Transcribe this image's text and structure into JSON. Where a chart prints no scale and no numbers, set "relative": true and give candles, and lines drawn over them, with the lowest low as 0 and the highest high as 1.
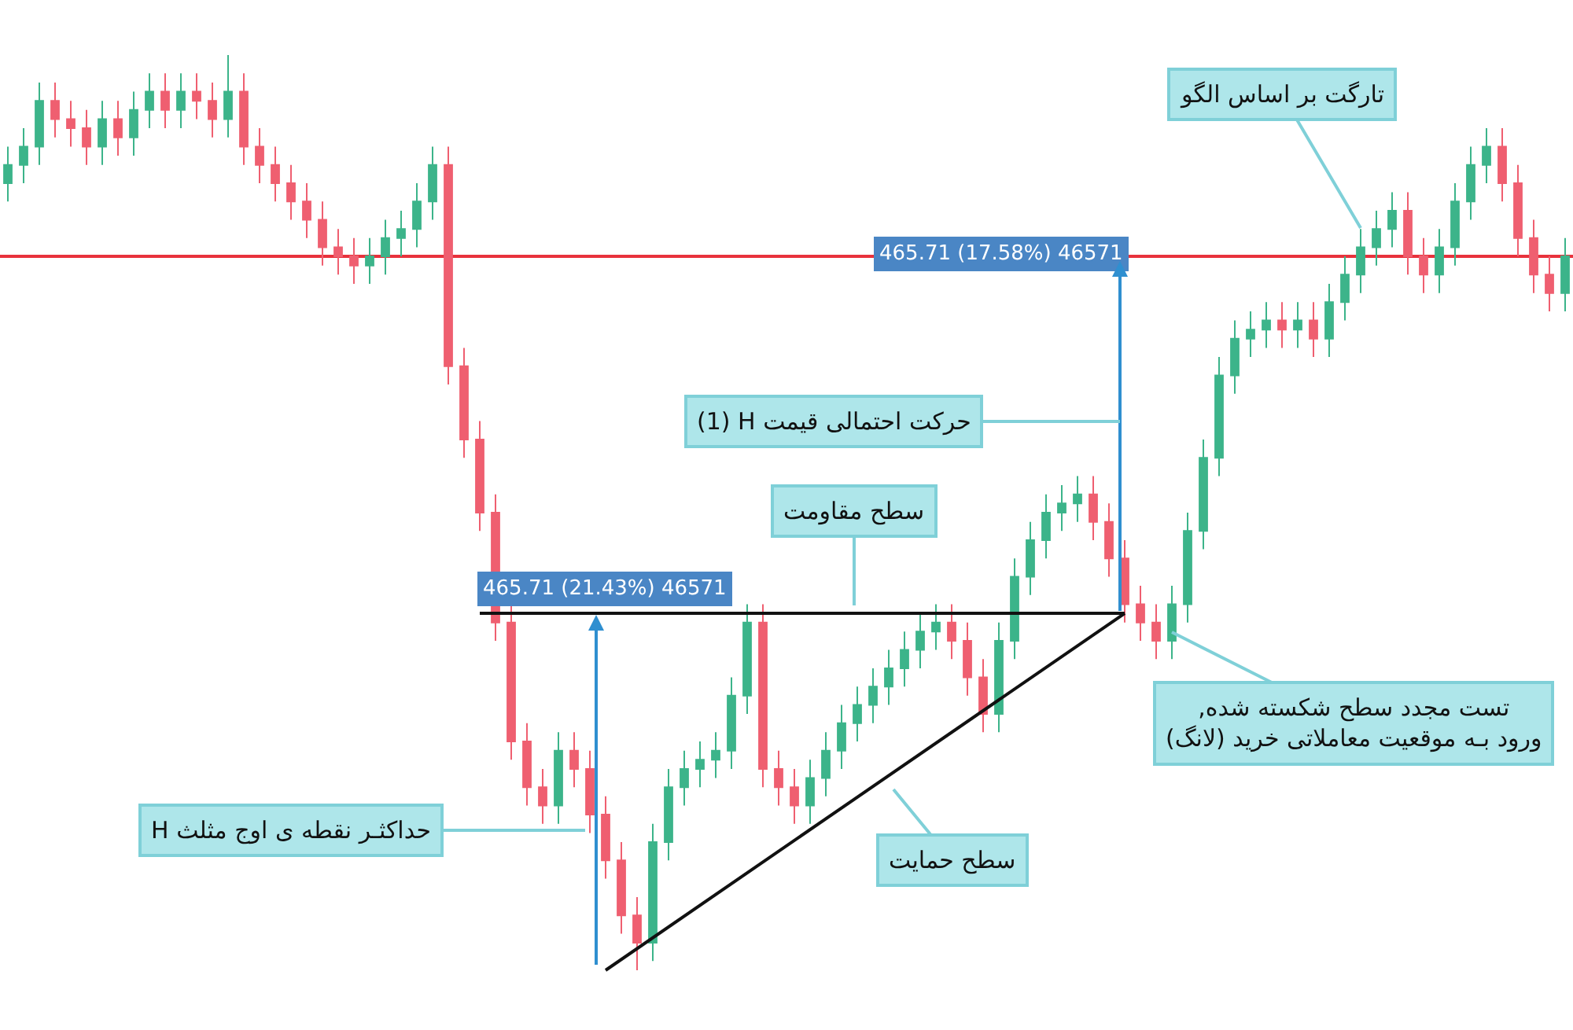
{
  "chart_data": {
    "type": "candlestick",
    "relative": true,
    "categories": [
      null,
      null,
      null,
      null,
      null,
      null,
      null,
      null,
      null,
      null,
      null,
      null,
      null,
      null,
      null,
      null,
      null,
      null,
      null,
      null,
      null,
      null,
      null,
      null,
      null,
      null,
      null,
      null,
      null,
      null,
      null,
      null,
      null,
      null,
      null,
      null,
      null,
      null,
      null,
      null,
      null,
      null,
      null,
      null,
      null,
      null,
      null,
      null,
      null,
      null,
      null,
      null,
      null,
      null,
      null,
      null,
      null,
      null,
      null,
      null,
      null,
      null,
      null,
      null,
      null,
      null,
      null,
      null,
      null,
      null,
      null,
      null,
      null,
      null,
      null,
      null,
      null,
      null,
      null,
      null,
      null,
      null,
      null,
      null,
      null,
      null,
      null,
      null,
      null,
      null,
      null,
      null,
      null,
      null,
      null,
      null,
      null,
      null,
      null,
      null
    ],
    "ohlc": [
      [
        0.86,
        0.9,
        0.84,
        0.88
      ],
      [
        0.88,
        0.92,
        0.86,
        0.9
      ],
      [
        0.9,
        0.97,
        0.88,
        0.95
      ],
      [
        0.95,
        0.97,
        0.91,
        0.93
      ],
      [
        0.93,
        0.95,
        0.9,
        0.92
      ],
      [
        0.92,
        0.94,
        0.88,
        0.9
      ],
      [
        0.9,
        0.95,
        0.88,
        0.93
      ],
      [
        0.93,
        0.95,
        0.89,
        0.91
      ],
      [
        0.91,
        0.96,
        0.89,
        0.94
      ],
      [
        0.94,
        0.98,
        0.92,
        0.96
      ],
      [
        0.96,
        0.98,
        0.92,
        0.94
      ],
      [
        0.94,
        0.98,
        0.92,
        0.96
      ],
      [
        0.96,
        0.98,
        0.93,
        0.95
      ],
      [
        0.95,
        0.97,
        0.91,
        0.93
      ],
      [
        0.93,
        1.0,
        0.91,
        0.96
      ],
      [
        0.96,
        0.98,
        0.88,
        0.9
      ],
      [
        0.9,
        0.92,
        0.86,
        0.88
      ],
      [
        0.88,
        0.9,
        0.84,
        0.86
      ],
      [
        0.86,
        0.88,
        0.82,
        0.84
      ],
      [
        0.84,
        0.86,
        0.8,
        0.82
      ],
      [
        0.82,
        0.84,
        0.77,
        0.79
      ],
      [
        0.79,
        0.81,
        0.76,
        0.78
      ],
      [
        0.78,
        0.8,
        0.75,
        0.77
      ],
      [
        0.77,
        0.8,
        0.75,
        0.78
      ],
      [
        0.78,
        0.82,
        0.76,
        0.8
      ],
      [
        0.8,
        0.83,
        0.78,
        0.81
      ],
      [
        0.81,
        0.86,
        0.79,
        0.84
      ],
      [
        0.84,
        0.9,
        0.82,
        0.88
      ],
      [
        0.88,
        0.9,
        0.64,
        0.66
      ],
      [
        0.66,
        0.68,
        0.56,
        0.58
      ],
      [
        0.58,
        0.6,
        0.48,
        0.5
      ],
      [
        0.5,
        0.52,
        0.36,
        0.38
      ],
      [
        0.38,
        0.4,
        0.23,
        0.25
      ],
      [
        0.25,
        0.27,
        0.18,
        0.2
      ],
      [
        0.2,
        0.22,
        0.16,
        0.18
      ],
      [
        0.18,
        0.26,
        0.16,
        0.24
      ],
      [
        0.24,
        0.26,
        0.2,
        0.22
      ],
      [
        0.22,
        0.24,
        0.15,
        0.17
      ],
      [
        0.17,
        0.19,
        0.1,
        0.12
      ],
      [
        0.12,
        0.14,
        0.04,
        0.06
      ],
      [
        0.06,
        0.08,
        0.0,
        0.03
      ],
      [
        0.03,
        0.16,
        0.01,
        0.14
      ],
      [
        0.14,
        0.22,
        0.12,
        0.2
      ],
      [
        0.2,
        0.24,
        0.18,
        0.22
      ],
      [
        0.22,
        0.25,
        0.2,
        0.23
      ],
      [
        0.23,
        0.26,
        0.21,
        0.24
      ],
      [
        0.24,
        0.32,
        0.22,
        0.3
      ],
      [
        0.3,
        0.4,
        0.28,
        0.38
      ],
      [
        0.38,
        0.4,
        0.2,
        0.22
      ],
      [
        0.22,
        0.24,
        0.18,
        0.2
      ],
      [
        0.2,
        0.22,
        0.16,
        0.18
      ],
      [
        0.18,
        0.23,
        0.16,
        0.21
      ],
      [
        0.21,
        0.26,
        0.19,
        0.24
      ],
      [
        0.24,
        0.29,
        0.22,
        0.27
      ],
      [
        0.27,
        0.31,
        0.25,
        0.29
      ],
      [
        0.29,
        0.33,
        0.27,
        0.31
      ],
      [
        0.31,
        0.35,
        0.29,
        0.33
      ],
      [
        0.33,
        0.37,
        0.31,
        0.35
      ],
      [
        0.35,
        0.39,
        0.33,
        0.37
      ],
      [
        0.37,
        0.4,
        0.35,
        0.38
      ],
      [
        0.38,
        0.4,
        0.34,
        0.36
      ],
      [
        0.36,
        0.38,
        0.3,
        0.32
      ],
      [
        0.32,
        0.34,
        0.26,
        0.28
      ],
      [
        0.28,
        0.38,
        0.26,
        0.36
      ],
      [
        0.36,
        0.45,
        0.34,
        0.43
      ],
      [
        0.43,
        0.49,
        0.41,
        0.47
      ],
      [
        0.47,
        0.52,
        0.45,
        0.5
      ],
      [
        0.5,
        0.53,
        0.48,
        0.51
      ],
      [
        0.51,
        0.54,
        0.49,
        0.52
      ],
      [
        0.52,
        0.54,
        0.47,
        0.49
      ],
      [
        0.49,
        0.51,
        0.43,
        0.45
      ],
      [
        0.45,
        0.47,
        0.38,
        0.4
      ],
      [
        0.4,
        0.42,
        0.36,
        0.38
      ],
      [
        0.38,
        0.4,
        0.34,
        0.36
      ],
      [
        0.36,
        0.42,
        0.34,
        0.4
      ],
      [
        0.4,
        0.5,
        0.38,
        0.48
      ],
      [
        0.48,
        0.58,
        0.46,
        0.56
      ],
      [
        0.56,
        0.67,
        0.54,
        0.65
      ],
      [
        0.65,
        0.71,
        0.63,
        0.69
      ],
      [
        0.69,
        0.72,
        0.67,
        0.7
      ],
      [
        0.7,
        0.73,
        0.68,
        0.71
      ],
      [
        0.71,
        0.73,
        0.68,
        0.7
      ],
      [
        0.7,
        0.73,
        0.68,
        0.71
      ],
      [
        0.71,
        0.73,
        0.67,
        0.69
      ],
      [
        0.69,
        0.75,
        0.67,
        0.73
      ],
      [
        0.73,
        0.78,
        0.71,
        0.76
      ],
      [
        0.76,
        0.81,
        0.74,
        0.79
      ],
      [
        0.79,
        0.83,
        0.77,
        0.81
      ],
      [
        0.81,
        0.85,
        0.79,
        0.83
      ],
      [
        0.83,
        0.85,
        0.76,
        0.78
      ],
      [
        0.78,
        0.8,
        0.74,
        0.76
      ],
      [
        0.76,
        0.81,
        0.74,
        0.79
      ],
      [
        0.79,
        0.86,
        0.77,
        0.84
      ],
      [
        0.84,
        0.9,
        0.82,
        0.88
      ],
      [
        0.88,
        0.92,
        0.86,
        0.9
      ],
      [
        0.9,
        0.92,
        0.84,
        0.86
      ],
      [
        0.86,
        0.88,
        0.78,
        0.8
      ],
      [
        0.8,
        0.82,
        0.74,
        0.76
      ],
      [
        0.76,
        0.78,
        0.72,
        0.74
      ],
      [
        0.74,
        0.8,
        0.72,
        0.78
      ]
    ],
    "colors": [
      "#3cb48a",
      "#3cb48a",
      "#3cb48a",
      "#ef5f70",
      "#ef5f70",
      "#ef5f70",
      "#3cb48a",
      "#ef5f70",
      "#3cb48a",
      "#3cb48a",
      "#ef5f70",
      "#3cb48a",
      "#ef5f70",
      "#ef5f70",
      "#3cb48a",
      "#ef5f70",
      "#ef5f70",
      "#ef5f70",
      "#ef5f70",
      "#ef5f70",
      "#ef5f70",
      "#ef5f70",
      "#ef5f70",
      "#3cb48a",
      "#3cb48a",
      "#3cb48a",
      "#3cb48a",
      "#3cb48a",
      "#ef5f70",
      "#ef5f70",
      "#ef5f70",
      "#ef5f70",
      "#ef5f70",
      "#ef5f70",
      "#ef5f70",
      "#3cb48a",
      "#ef5f70",
      "#ef5f70",
      "#ef5f70",
      "#ef5f70",
      "#ef5f70",
      "#3cb48a",
      "#3cb48a",
      "#3cb48a",
      "#3cb48a",
      "#3cb48a",
      "#3cb48a",
      "#3cb48a",
      "#ef5f70",
      "#ef5f70",
      "#ef5f70",
      "#3cb48a",
      "#3cb48a",
      "#3cb48a",
      "#3cb48a",
      "#3cb48a",
      "#3cb48a",
      "#3cb48a",
      "#3cb48a",
      "#3cb48a",
      "#ef5f70",
      "#ef5f70",
      "#ef5f70",
      "#3cb48a",
      "#3cb48a",
      "#3cb48a",
      "#3cb48a",
      "#3cb48a",
      "#3cb48a",
      "#ef5f70",
      "#ef5f70",
      "#ef5f70",
      "#ef5f70",
      "#ef5f70",
      "#3cb48a",
      "#3cb48a",
      "#3cb48a",
      "#3cb48a",
      "#3cb48a",
      "#3cb48a",
      "#3cb48a",
      "#ef5f70",
      "#3cb48a",
      "#ef5f70",
      "#3cb48a",
      "#3cb48a",
      "#3cb48a",
      "#3cb48a",
      "#3cb48a",
      "#ef5f70",
      "#ef5f70",
      "#3cb48a",
      "#3cb48a",
      "#3cb48a",
      "#3cb48a",
      "#ef5f70",
      "#ef5f70",
      "#ef5f70",
      "#ef5f70",
      "#3cb48a"
    ],
    "series": [
      {
        "type": "line",
        "color": "#111111",
        "values": [
          null,
          null,
          null,
          null,
          null,
          null,
          null,
          null,
          null,
          null,
          null,
          null,
          null,
          null,
          null,
          null,
          null,
          null,
          null,
          null,
          null,
          null,
          null,
          null,
          null,
          null,
          null,
          null,
          null,
          null,
          0.39,
          null,
          null,
          null,
          null,
          null,
          null,
          null,
          null,
          null,
          null,
          null,
          null,
          null,
          null,
          null,
          null,
          null,
          null,
          null,
          null,
          null,
          null,
          null,
          null,
          null,
          null,
          null,
          null,
          null,
          null,
          null,
          null,
          null,
          null,
          null,
          null,
          null,
          null,
          null,
          null,
          0.39,
          null,
          null,
          null,
          null,
          null,
          null,
          null,
          null,
          null,
          null,
          null,
          null,
          null,
          null,
          null,
          null,
          null,
          null,
          null,
          null,
          null,
          null,
          null,
          null,
          null,
          null,
          null,
          null
        ]
      },
      {
        "type": "line",
        "color": "#111111",
        "values": [
          null,
          null,
          null,
          null,
          null,
          null,
          null,
          null,
          null,
          null,
          null,
          null,
          null,
          null,
          null,
          null,
          null,
          null,
          null,
          null,
          null,
          null,
          null,
          null,
          null,
          null,
          null,
          null,
          null,
          null,
          null,
          null,
          null,
          null,
          null,
          null,
          null,
          null,
          0.0,
          null,
          null,
          null,
          null,
          null,
          null,
          null,
          null,
          null,
          null,
          null,
          null,
          null,
          null,
          null,
          null,
          null,
          null,
          null,
          null,
          null,
          null,
          null,
          null,
          null,
          null,
          null,
          null,
          null,
          null,
          null,
          null,
          0.39,
          null,
          null,
          null,
          null,
          null,
          null,
          null,
          null,
          null,
          null,
          null,
          null,
          null,
          null,
          null,
          null,
          null,
          null,
          null,
          null,
          null,
          null,
          null,
          null,
          null,
          null,
          null,
          null
        ]
      }
    ],
    "ref_lines": [
      {
        "axis": "y",
        "value": 0.78,
        "color": "#e8323c"
      }
    ],
    "annotations": [
      "تارگت بر اساس الگو",
      "465.71 (17.58%) 46571",
      "(1) H حرکت احتمالی قیمت",
      "سطح مقاومت",
      "465.71 (21.43%) 46571",
      ",تست مجدد سطح شکسته شده\nورود بـه موقعیت معاملاتی خرید (لانگ)",
      "H حداکثـر نقطه ی اوج مثلث",
      "سطح حمایت"
    ],
    "grid": false
  }
}
